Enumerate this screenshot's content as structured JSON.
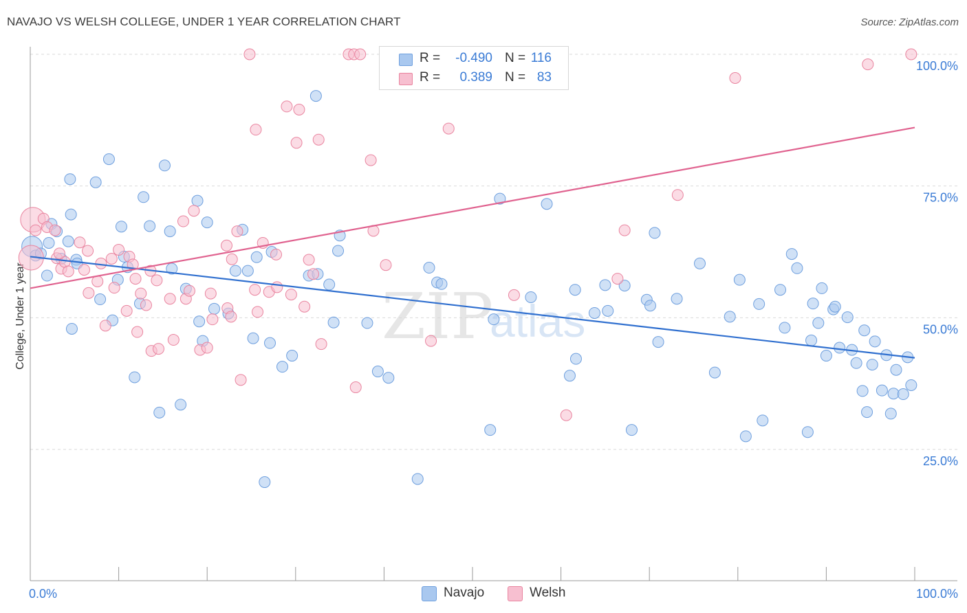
{
  "title": "NAVAJO VS WELSH COLLEGE, UNDER 1 YEAR CORRELATION CHART",
  "source": "Source: ZipAtlas.com",
  "watermark": {
    "zip": "ZIP",
    "atlas": "atlas"
  },
  "legend_stats": [
    {
      "r_label": "R =",
      "r_value": "-0.490",
      "n_label": "N =",
      "n_value": "116",
      "color": "#a9c8ef",
      "border": "#6e9fde"
    },
    {
      "r_label": "R =",
      "r_value": "0.389",
      "n_label": "N =",
      "n_value": "83",
      "color": "#f7bfd0",
      "border": "#e9849f"
    }
  ],
  "colors": {
    "navajo_fill": "#a9c8ef",
    "navajo_stroke": "#6e9fde",
    "navajo_line": "#2f6fcf",
    "welsh_fill": "#f7bfd0",
    "welsh_stroke": "#e9849f",
    "welsh_line": "#e0628f",
    "axis_label": "#3a7bd5",
    "grid": "#d9d9d9"
  },
  "chart_data": {
    "type": "scatter",
    "title": "NAVAJO VS WELSH COLLEGE, UNDER 1 YEAR CORRELATION CHART",
    "xlabel": "",
    "ylabel": "College, Under 1 year",
    "xlim": [
      0,
      100
    ],
    "ylim": [
      0,
      105
    ],
    "x_tick_labels": [
      "0.0%",
      "100.0%"
    ],
    "y_ticks": [
      25,
      50,
      75,
      100
    ],
    "y_tick_labels": [
      "25.0%",
      "50.0%",
      "75.0%",
      "100.0%"
    ],
    "grid": "horizontal dashed",
    "legend": "bottom-center",
    "series": [
      {
        "name": "Navajo",
        "r": -0.49,
        "n": 116,
        "trend": {
          "x": [
            0,
            100
          ],
          "y": [
            61.6,
            42.4
          ]
        },
        "points": [
          [
            0.2,
            63.5
          ],
          [
            0.6,
            61.8
          ],
          [
            1.2,
            62.2
          ],
          [
            1.9,
            58
          ],
          [
            2.1,
            64.2
          ],
          [
            2.4,
            67.8
          ],
          [
            3.0,
            66.4
          ],
          [
            3.5,
            61.2
          ],
          [
            4.3,
            64.5
          ],
          [
            4.6,
            69.6
          ],
          [
            4.7,
            47.9
          ],
          [
            4.5,
            76.3
          ],
          [
            5.2,
            61
          ],
          [
            5.3,
            60.3
          ],
          [
            7.4,
            75.7
          ],
          [
            7.9,
            53.5
          ],
          [
            8.9,
            80.1
          ],
          [
            9.3,
            49.5
          ],
          [
            9.9,
            57.2
          ],
          [
            10.3,
            67.3
          ],
          [
            10.6,
            61.6
          ],
          [
            11.0,
            59.6
          ],
          [
            11.8,
            38.7
          ],
          [
            12.4,
            52.7
          ],
          [
            12.8,
            72.9
          ],
          [
            13.5,
            67.4
          ],
          [
            14.6,
            32
          ],
          [
            15.2,
            78.9
          ],
          [
            15.8,
            66.4
          ],
          [
            16.0,
            59.3
          ],
          [
            17.0,
            33.5
          ],
          [
            17.6,
            55.5
          ],
          [
            18.9,
            72.2
          ],
          [
            19.1,
            49.3
          ],
          [
            19.5,
            45.6
          ],
          [
            20.0,
            68.1
          ],
          [
            20.8,
            51.7
          ],
          [
            22.4,
            50.8
          ],
          [
            23.2,
            58.9
          ],
          [
            24.0,
            66.7
          ],
          [
            24.6,
            58.9
          ],
          [
            25.2,
            46.1
          ],
          [
            25.6,
            61.5
          ],
          [
            26.5,
            18.8
          ],
          [
            27.1,
            45.2
          ],
          [
            27.3,
            62.5
          ],
          [
            28.5,
            40.7
          ],
          [
            29.6,
            42.8
          ],
          [
            31.5,
            58
          ],
          [
            32.3,
            92.1
          ],
          [
            32.5,
            58.3
          ],
          [
            33.8,
            56.3
          ],
          [
            34.3,
            49.1
          ],
          [
            34.8,
            62.7
          ],
          [
            35.0,
            65.6
          ],
          [
            38.1,
            49
          ],
          [
            39.3,
            39.8
          ],
          [
            40.5,
            38.6
          ],
          [
            43.8,
            19.4
          ],
          [
            45.1,
            59.5
          ],
          [
            46.0,
            56.7
          ],
          [
            46.5,
            56.4
          ],
          [
            52.0,
            28.7
          ],
          [
            52.4,
            49.7
          ],
          [
            53.1,
            72.6
          ],
          [
            56.6,
            53.9
          ],
          [
            58.4,
            71.6
          ],
          [
            61.0,
            39
          ],
          [
            61.6,
            55.3
          ],
          [
            61.7,
            42.2
          ],
          [
            63.8,
            50.9
          ],
          [
            65.0,
            56.2
          ],
          [
            65.3,
            51.3
          ],
          [
            67.2,
            56.1
          ],
          [
            68.0,
            28.7
          ],
          [
            69.7,
            53.4
          ],
          [
            70.1,
            52.3
          ],
          [
            70.6,
            66.1
          ],
          [
            71.0,
            45.4
          ],
          [
            73.1,
            53.6
          ],
          [
            75.7,
            60.3
          ],
          [
            77.4,
            39.6
          ],
          [
            79.1,
            50.2
          ],
          [
            80.2,
            57.2
          ],
          [
            80.9,
            27.5
          ],
          [
            82.4,
            52.6
          ],
          [
            82.8,
            30.5
          ],
          [
            84.8,
            55.3
          ],
          [
            85.3,
            48.1
          ],
          [
            86.1,
            62.1
          ],
          [
            86.7,
            59.4
          ],
          [
            87.9,
            28.3
          ],
          [
            88.3,
            45.7
          ],
          [
            88.5,
            52.7
          ],
          [
            89.1,
            49
          ],
          [
            89.5,
            55.6
          ],
          [
            90.0,
            42.8
          ],
          [
            90.8,
            51.6
          ],
          [
            91.0,
            52.1
          ],
          [
            91.5,
            44.3
          ],
          [
            92.4,
            50.1
          ],
          [
            92.9,
            43.9
          ],
          [
            93.4,
            41.4
          ],
          [
            94.1,
            36.1
          ],
          [
            94.3,
            47.6
          ],
          [
            94.6,
            32.1
          ],
          [
            95.2,
            41.1
          ],
          [
            95.5,
            45.5
          ],
          [
            96.3,
            36.2
          ],
          [
            96.8,
            42.9
          ],
          [
            97.3,
            31.8
          ],
          [
            97.6,
            35.6
          ],
          [
            97.9,
            40.1
          ],
          [
            98.7,
            35.5
          ],
          [
            99.2,
            42.5
          ],
          [
            99.6,
            37.2
          ]
        ]
      },
      {
        "name": "Welsh",
        "r": 0.389,
        "n": 83,
        "trend": {
          "x": [
            0,
            100
          ],
          "y": [
            55.6,
            86.1
          ]
        },
        "points": [
          [
            0.1,
            61.4
          ],
          [
            0.3,
            68.6
          ],
          [
            0.6,
            66.6
          ],
          [
            1.5,
            68.8
          ],
          [
            1.9,
            67.2
          ],
          [
            2.8,
            66.6
          ],
          [
            3.0,
            61.3
          ],
          [
            3.5,
            59.3
          ],
          [
            3.9,
            60.6
          ],
          [
            4.3,
            58.8
          ],
          [
            5.6,
            64.3
          ],
          [
            6.1,
            59.1
          ],
          [
            6.5,
            62.7
          ],
          [
            6.6,
            54.7
          ],
          [
            7.6,
            56.9
          ],
          [
            8.0,
            60.3
          ],
          [
            8.5,
            48.5
          ],
          [
            9.2,
            61.2
          ],
          [
            9.5,
            55.7
          ],
          [
            10.0,
            62.9
          ],
          [
            10.9,
            51.3
          ],
          [
            11.2,
            61.6
          ],
          [
            11.6,
            60.1
          ],
          [
            11.9,
            57.4
          ],
          [
            12.1,
            47.3
          ],
          [
            12.5,
            54.6
          ],
          [
            13.1,
            52.4
          ],
          [
            13.6,
            58.9
          ],
          [
            13.7,
            43.7
          ],
          [
            14.3,
            57.1
          ],
          [
            14.5,
            44.1
          ],
          [
            15.8,
            53.6
          ],
          [
            16.2,
            45.8
          ],
          [
            17.3,
            68.3
          ],
          [
            17.6,
            53.6
          ],
          [
            18.0,
            55.1
          ],
          [
            18.5,
            70.3
          ],
          [
            19.2,
            43.9
          ],
          [
            20.0,
            44.3
          ],
          [
            20.4,
            54.6
          ],
          [
            20.6,
            49.7
          ],
          [
            22.2,
            63.7
          ],
          [
            22.3,
            51.8
          ],
          [
            22.7,
            50.2
          ],
          [
            22.8,
            61.1
          ],
          [
            23.4,
            66.4
          ],
          [
            23.8,
            38.2
          ],
          [
            24.8,
            100
          ],
          [
            25.4,
            55.3
          ],
          [
            25.5,
            85.7
          ],
          [
            25.7,
            51.1
          ],
          [
            26.3,
            64.2
          ],
          [
            27.0,
            54.9
          ],
          [
            27.8,
            62
          ],
          [
            27.9,
            55.8
          ],
          [
            29.0,
            90.1
          ],
          [
            29.5,
            54.4
          ],
          [
            30.1,
            83.2
          ],
          [
            30.4,
            89.5
          ],
          [
            31.0,
            52.1
          ],
          [
            31.5,
            61
          ],
          [
            32.0,
            58.3
          ],
          [
            32.6,
            83.8
          ],
          [
            32.9,
            45
          ],
          [
            36.0,
            100
          ],
          [
            36.6,
            100
          ],
          [
            36.8,
            36.8
          ],
          [
            37.3,
            100
          ],
          [
            38.5,
            79.9
          ],
          [
            38.8,
            66.5
          ],
          [
            40.2,
            60
          ],
          [
            41.3,
            100
          ],
          [
            45.3,
            45.6
          ],
          [
            47.3,
            85.9
          ],
          [
            54.7,
            54.3
          ],
          [
            60.6,
            31.5
          ],
          [
            66.4,
            57.4
          ],
          [
            67.2,
            66.6
          ],
          [
            73.2,
            73.3
          ],
          [
            79.7,
            95.5
          ],
          [
            94.7,
            98.1
          ],
          [
            99.6,
            100
          ],
          [
            3.3,
            62.2
          ]
        ]
      }
    ]
  },
  "bottom_legend": [
    {
      "label": "Navajo",
      "color": "#a9c8ef",
      "border": "#6e9fde"
    },
    {
      "label": "Welsh",
      "color": "#f7bfd0",
      "border": "#e9849f"
    }
  ]
}
